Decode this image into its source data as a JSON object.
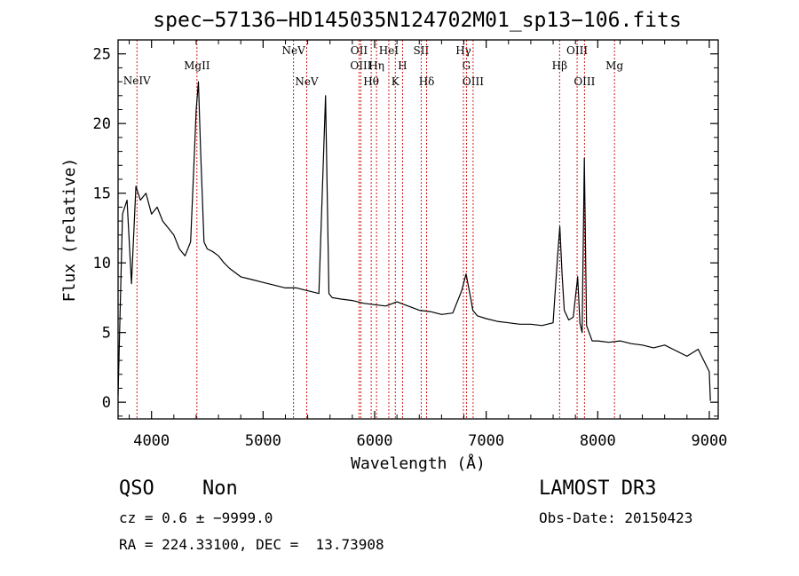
{
  "chart_data": {
    "type": "line",
    "title": "spec−57136−HD145035N124702M01_sp13−106.fits",
    "xlabel": "Wavelength (Å)",
    "ylabel": "Flux (relative)",
    "xlim": [
      3700,
      9080
    ],
    "ylim": [
      -1.2,
      26
    ],
    "x_ticks": [
      4000,
      5000,
      6000,
      7000,
      8000,
      9000
    ],
    "y_ticks": [
      0,
      5,
      10,
      15,
      20,
      25
    ],
    "grid": false,
    "line_color": "#000000",
    "marker_color": "#cc0000",
    "spectrum": {
      "x": [
        3700,
        3740,
        3780,
        3820,
        3860,
        3900,
        3950,
        4000,
        4050,
        4100,
        4150,
        4200,
        4250,
        4300,
        4350,
        4380,
        4400,
        4420,
        4440,
        4470,
        4500,
        4550,
        4600,
        4650,
        4700,
        4800,
        4900,
        5000,
        5100,
        5200,
        5300,
        5400,
        5500,
        5560,
        5590,
        5620,
        5700,
        5800,
        5900,
        6000,
        6100,
        6200,
        6300,
        6400,
        6500,
        6600,
        6700,
        6780,
        6820,
        6860,
        6880,
        6920,
        7000,
        7100,
        7200,
        7300,
        7400,
        7500,
        7600,
        7640,
        7660,
        7680,
        7700,
        7740,
        7780,
        7820,
        7840,
        7860,
        7880,
        7900,
        7950,
        8000,
        8100,
        8200,
        8300,
        8400,
        8500,
        8600,
        8700,
        8800,
        8900,
        9000,
        9010
      ],
      "y": [
        0.5,
        13.5,
        14.5,
        8.5,
        15.5,
        14.5,
        15,
        13.5,
        14,
        13,
        12.5,
        12,
        11,
        10.5,
        11.5,
        17,
        21,
        23,
        18,
        11.5,
        11,
        10.8,
        10.5,
        10,
        9.6,
        9,
        8.8,
        8.6,
        8.4,
        8.2,
        8.2,
        8,
        7.8,
        22,
        7.8,
        7.5,
        7.4,
        7.3,
        7.1,
        7,
        6.9,
        7.2,
        6.9,
        6.6,
        6.5,
        6.3,
        6.4,
        8,
        9.2,
        7.5,
        6.6,
        6.2,
        6,
        5.8,
        5.7,
        5.6,
        5.6,
        5.5,
        5.7,
        10.5,
        12.6,
        9.2,
        6.6,
        5.9,
        6.1,
        9,
        5.7,
        5,
        17.5,
        5.5,
        4.4,
        4.4,
        4.3,
        4.4,
        4.2,
        4.1,
        3.9,
        4.1,
        3.7,
        3.3,
        3.8,
        2.2,
        0.1
      ]
    },
    "line_markers": [
      {
        "label": "NeIV",
        "x": 3869,
        "row": "r1"
      },
      {
        "label": "MgII",
        "x": 4407,
        "row": "r2"
      },
      {
        "label": "NeV",
        "x": 5273,
        "row": "r3"
      },
      {
        "label": "NeV",
        "x": 5391,
        "row": "r4"
      },
      {
        "label": "OII",
        "x": 5860,
        "row": "r3"
      },
      {
        "label": "OIII",
        "x": 5876,
        "row": "r2"
      },
      {
        "label": "Hθ",
        "x": 5969,
        "row": "r4"
      },
      {
        "label": "Hη",
        "x": 6017,
        "row": "r2"
      },
      {
        "label": "HeI",
        "x": 6127,
        "row": "r3"
      },
      {
        "label": "K",
        "x": 6185,
        "row": "r4"
      },
      {
        "label": "H",
        "x": 6250,
        "row": "r2"
      },
      {
        "label": "SII",
        "x": 6417,
        "row": "r3"
      },
      {
        "label": "Hδ",
        "x": 6466,
        "row": "r4"
      },
      {
        "label": "Hγ",
        "x": 6796,
        "row": "r3"
      },
      {
        "label": "G",
        "x": 6823,
        "row": "r2"
      },
      {
        "label": "OIII",
        "x": 6883,
        "row": "r4"
      },
      {
        "label": "Hβ",
        "x": 7658,
        "row": "r2"
      },
      {
        "label": "OIII",
        "x": 7815,
        "row": "r3"
      },
      {
        "label": "OIII",
        "x": 7881,
        "row": "r4"
      },
      {
        "label": "Mg",
        "x": 8150,
        "row": "r2"
      }
    ]
  },
  "info": {
    "class": "QSO",
    "subclass": "Non",
    "survey": "LAMOST DR3",
    "cz": "cz = 0.6 ± −9999.0",
    "obs_date": "Obs-Date: 20150423",
    "coords": "RA = 224.33100, DEC =  13.73908"
  }
}
